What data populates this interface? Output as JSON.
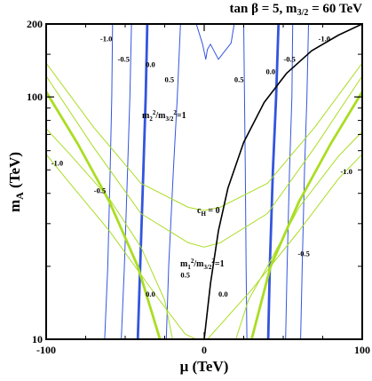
{
  "chart_data": {
    "type": "line",
    "title": "tan β = 5, m_{3/2} = 60 TeV",
    "xlabel": "μ  (TeV)",
    "ylabel": "m_A (TeV)",
    "xlim": [
      -100,
      100
    ],
    "ylim": [
      10,
      200
    ],
    "yscale": "log",
    "grid": false,
    "x_ticks": [
      "-100",
      "0",
      "100"
    ],
    "x_tick_values": [
      -100,
      0,
      100
    ],
    "y_ticks": [
      "10",
      "100",
      "200"
    ],
    "y_tick_values": [
      10,
      100,
      200
    ],
    "colors": {
      "m2_contours": "#3355dd",
      "m1_contours": "#aadd22",
      "cH_curve": "#000000"
    },
    "series": [
      {
        "name": "m_2^2/m_{3/2}^2 = -1.0 (left)",
        "group": "m2",
        "x": [
          -58,
          -58.5,
          -59.5,
          -61,
          -63
        ],
        "y": [
          200,
          100,
          50,
          20,
          10
        ]
      },
      {
        "name": "m_2^2/m_{3/2}^2 = -0.5 (left)",
        "group": "m2",
        "x": [
          -46,
          -47,
          -48.5,
          -50.5,
          -52.5
        ],
        "y": [
          200,
          100,
          50,
          20,
          10
        ]
      },
      {
        "name": "m_2^2/m_{3/2}^2 = 0.0 (left)",
        "group": "m2",
        "x": [
          -36,
          -37,
          -38.5,
          -40.5,
          -42
        ],
        "y": [
          200,
          100,
          50,
          20,
          10
        ]
      },
      {
        "name": "m_2^2/m_{3/2}^2 = 0.5 (left)",
        "group": "m2",
        "x": [
          -15,
          -17,
          -19.5,
          -22.5,
          -24
        ],
        "y": [
          200,
          100,
          50,
          20,
          10
        ]
      },
      {
        "name": "m_2^2/m_{3/2}^2 = 0.5 (right)",
        "group": "m2",
        "x": [
          25,
          25.5,
          26,
          26.5,
          27
        ],
        "y": [
          200,
          100,
          50,
          20,
          10
        ]
      },
      {
        "name": "m_2^2/m_{3/2}^2 = 0.0 (right)",
        "group": "m2",
        "x": [
          47,
          45.5,
          43.5,
          41.5,
          40.5
        ],
        "y": [
          200,
          100,
          50,
          20,
          10
        ]
      },
      {
        "name": "m_2^2/m_{3/2}^2 = -0.5 (right)",
        "group": "m2",
        "x": [
          56,
          55.5,
          54,
          52.5,
          51.5
        ],
        "y": [
          200,
          100,
          50,
          20,
          10
        ]
      },
      {
        "name": "m_2^2/m_{3/2}^2 = -1.0 (right)",
        "group": "m2",
        "x": [
          66,
          65,
          63.5,
          62,
          61
        ],
        "y": [
          200,
          100,
          50,
          20,
          10
        ]
      },
      {
        "name": "m_2^2/m_{3/2}^2 = 1",
        "group": "m2",
        "x": [
          -5,
          -1,
          1,
          2,
          4,
          9,
          17,
          19
        ],
        "y": [
          200,
          165,
          143,
          157,
          165,
          143,
          167,
          200
        ]
      },
      {
        "name": "m_1^2/m_{3/2}^2 = -1.0 (left)",
        "group": "m1",
        "x": [
          -100,
          -85,
          -60,
          -30,
          -12,
          -5
        ],
        "y": [
          58,
          44,
          28,
          15,
          10.5,
          10
        ]
      },
      {
        "name": "m_1^2/m_{3/2}^2 = -0.5 (left)",
        "group": "m1",
        "x": [
          -100,
          -85,
          -60,
          -40,
          -25,
          -20
        ],
        "y": [
          74,
          58,
          38,
          24,
          14.5,
          10
        ]
      },
      {
        "name": "m_1^2/m_{3/2}^2 = 0.0 (left)",
        "group": "m1",
        "x": [
          -100,
          -80,
          -60,
          -42,
          -28
        ],
        "y": [
          105,
          64,
          37,
          20,
          10
        ]
      },
      {
        "name": "m_1^2/m_{3/2}^2 = -1.0 (right)",
        "group": "m1",
        "x": [
          2,
          30,
          60,
          85,
          100
        ],
        "y": [
          10,
          16,
          28,
          46,
          58
        ]
      },
      {
        "name": "m_1^2/m_{3/2}^2 = -0.5 (right)",
        "group": "m1",
        "x": [
          20,
          28,
          40,
          60,
          85,
          100
        ],
        "y": [
          10,
          14.5,
          20,
          35,
          57,
          72
        ]
      },
      {
        "name": "m_1^2/m_{3/2}^2 = 0.0 (right)",
        "group": "m1",
        "x": [
          30,
          42,
          60,
          80,
          100
        ],
        "y": [
          10,
          20,
          37,
          64,
          105
        ]
      },
      {
        "name": "m_1^2/m_{3/2}^2 = 0.5",
        "group": "m1",
        "x": [
          -100,
          -70,
          -40,
          -10,
          0,
          10,
          40,
          70,
          100
        ],
        "y": [
          122,
          62,
          33,
          25,
          24,
          25,
          33,
          62,
          122
        ]
      },
      {
        "name": "m_1^2/m_{3/2}^2 = 1",
        "group": "m1",
        "x": [
          -100,
          -70,
          -40,
          -10,
          0,
          10,
          40,
          70,
          100
        ],
        "y": [
          138,
          75,
          44,
          35,
          34,
          35,
          44,
          75,
          138
        ]
      },
      {
        "name": "c_H = 0",
        "group": "cH",
        "x": [
          0,
          4,
          9,
          15,
          25,
          38,
          52,
          68,
          85,
          100
        ],
        "y": [
          10,
          17,
          28,
          42,
          65,
          95,
          125,
          155,
          180,
          200
        ]
      }
    ],
    "annotations": [
      {
        "text": "-1.0",
        "x": -62,
        "y": 170
      },
      {
        "text": "-0.5",
        "x": -51,
        "y": 140
      },
      {
        "text": "0.0",
        "x": -34,
        "y": 133
      },
      {
        "text": "0.5",
        "x": -22,
        "y": 115
      },
      {
        "text": "0.0",
        "x": 42,
        "y": 124
      },
      {
        "text": "-0.5",
        "x": 54,
        "y": 140
      },
      {
        "text": "-1.0",
        "x": 76,
        "y": 170
      },
      {
        "text": "0.5",
        "x": 22,
        "y": 115
      },
      {
        "text": "-1.0",
        "x": -93,
        "y": 52
      },
      {
        "text": "-0.5",
        "x": -66,
        "y": 40
      },
      {
        "text": "0.5",
        "x": -12,
        "y": 18
      },
      {
        "text": "0.0",
        "x": -34,
        "y": 15
      },
      {
        "text": "0.0",
        "x": 12,
        "y": 15
      },
      {
        "text": "-0.5",
        "x": 63,
        "y": 22
      },
      {
        "text": "-1.0",
        "x": 90,
        "y": 48
      }
    ],
    "curve_labels": {
      "m2_unity": "m₂²/m₃/₂²=1",
      "m1_unity": "m₁²/m₃/₂²=1",
      "cH_zero": "c_H = 0"
    }
  }
}
